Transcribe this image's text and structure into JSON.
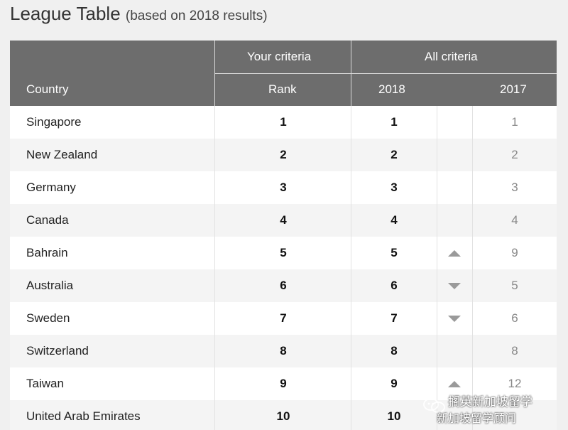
{
  "header": {
    "title": "League Table",
    "subtitle": "(based on 2018 results)"
  },
  "table": {
    "group_headers": {
      "your_criteria": "Your criteria",
      "all_criteria": "All criteria"
    },
    "columns": {
      "country": "Country",
      "rank": "Rank",
      "y2018": "2018",
      "y2017": "2017"
    },
    "rows": [
      {
        "country": "Singapore",
        "rank": "1",
        "y2018": "1",
        "trend": "none",
        "y2017": "1"
      },
      {
        "country": "New Zealand",
        "rank": "2",
        "y2018": "2",
        "trend": "none",
        "y2017": "2"
      },
      {
        "country": "Germany",
        "rank": "3",
        "y2018": "3",
        "trend": "none",
        "y2017": "3"
      },
      {
        "country": "Canada",
        "rank": "4",
        "y2018": "4",
        "trend": "none",
        "y2017": "4"
      },
      {
        "country": "Bahrain",
        "rank": "5",
        "y2018": "5",
        "trend": "up",
        "y2017": "9"
      },
      {
        "country": "Australia",
        "rank": "6",
        "y2018": "6",
        "trend": "down",
        "y2017": "5"
      },
      {
        "country": "Sweden",
        "rank": "7",
        "y2018": "7",
        "trend": "down",
        "y2017": "6"
      },
      {
        "country": "Switzerland",
        "rank": "8",
        "y2018": "8",
        "trend": "none",
        "y2017": "8"
      },
      {
        "country": "Taiwan",
        "rank": "9",
        "y2018": "9",
        "trend": "up",
        "y2017": "12"
      },
      {
        "country": "United Arab Emirates",
        "rank": "10",
        "y2018": "10",
        "trend": "",
        "y2017": ""
      }
    ]
  },
  "watermark": {
    "line1": "搁英新加坡留学",
    "line2": "新加坡留学顾问"
  },
  "colors": {
    "header_bg": "#6d6d6d",
    "row_alt_bg": "#f4f4f4",
    "trend_arrow": "#9a9a9a"
  }
}
